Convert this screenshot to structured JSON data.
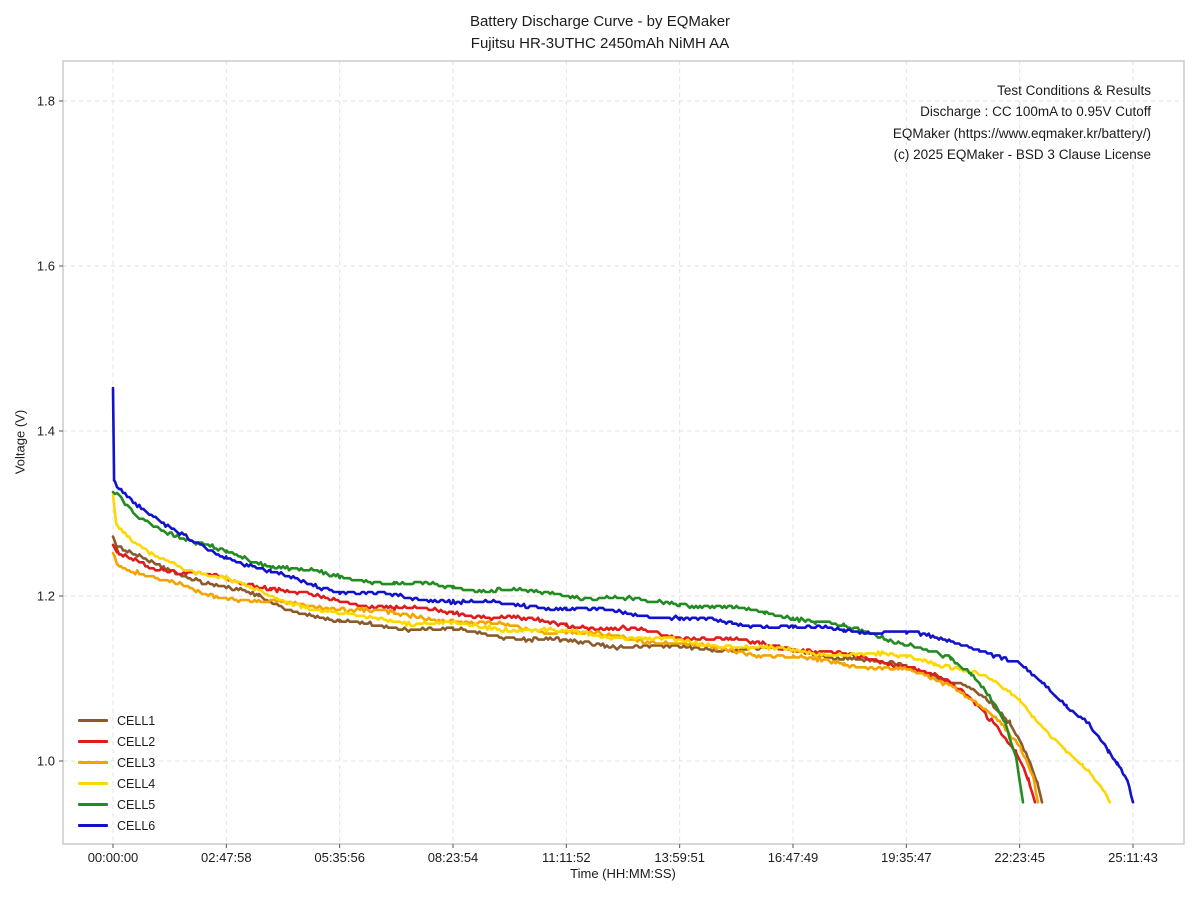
{
  "figure": {
    "title_line1": "Battery Discharge Curve - by EQMaker",
    "title_line2": "Fujitsu HR-3UTHC 2450mAh NiMH AA",
    "annotation": {
      "lines": [
        "Test Conditions & Results",
        "Discharge : CC 100mA to 0.95V Cutoff",
        "EQMaker (https://www.eqmaker.kr/battery/)",
        "(c) 2025 EQMaker - BSD 3 Clause License"
      ]
    }
  },
  "chart_data": {
    "type": "line",
    "title": "Battery Discharge Curve - by EQMaker\nFujitsu HR-3UTHC 2450mAh NiMH AA",
    "xlabel": "Time (HH:MM:SS)",
    "ylabel": "Voltage (V)",
    "x_tick_labels": [
      "00:00:00",
      "02:47:58",
      "05:35:56",
      "08:23:54",
      "11:11:52",
      "13:59:51",
      "16:47:49",
      "19:35:47",
      "22:23:45",
      "25:11:43"
    ],
    "x_ticks_seconds": [
      0,
      10078,
      20156,
      30234,
      40312,
      50391,
      60469,
      70547,
      80625,
      90703
    ],
    "y_tick_labels": [
      "1.0",
      "1.2",
      "1.4",
      "1.6",
      "1.8"
    ],
    "y_ticks": [
      1.0,
      1.2,
      1.4,
      1.6,
      1.8
    ],
    "xlim_seconds": [
      -4450,
      95600
    ],
    "ylim": [
      0.898,
      1.85
    ],
    "grid": true,
    "grid_style": "dashed",
    "legend_position": "lower-left",
    "series": [
      {
        "name": "CELL1",
        "color": "#8B5A2B",
        "points": [
          [
            0,
            1.272
          ],
          [
            400,
            1.258
          ],
          [
            1800,
            1.25
          ],
          [
            3600,
            1.238
          ],
          [
            7200,
            1.222
          ],
          [
            10078,
            1.21
          ],
          [
            13000,
            1.198
          ],
          [
            16000,
            1.183
          ],
          [
            20156,
            1.168
          ],
          [
            25000,
            1.163
          ],
          [
            30234,
            1.158
          ],
          [
            36000,
            1.15
          ],
          [
            40312,
            1.144
          ],
          [
            45000,
            1.14
          ],
          [
            50391,
            1.137
          ],
          [
            56000,
            1.136
          ],
          [
            60469,
            1.135
          ],
          [
            65000,
            1.125
          ],
          [
            70547,
            1.114
          ],
          [
            73000,
            1.105
          ],
          [
            75600,
            1.092
          ],
          [
            77800,
            1.072
          ],
          [
            79800,
            1.045
          ],
          [
            81300,
            1.008
          ],
          [
            82200,
            0.975
          ],
          [
            82607,
            0.95
          ]
        ]
      },
      {
        "name": "CELL2",
        "color": "#E01B1B",
        "points": [
          [
            0,
            1.262
          ],
          [
            400,
            1.252
          ],
          [
            1800,
            1.245
          ],
          [
            3600,
            1.235
          ],
          [
            7200,
            1.226
          ],
          [
            10078,
            1.22
          ],
          [
            14000,
            1.21
          ],
          [
            20156,
            1.193
          ],
          [
            25000,
            1.186
          ],
          [
            30234,
            1.18
          ],
          [
            36000,
            1.172
          ],
          [
            40312,
            1.165
          ],
          [
            45000,
            1.16
          ],
          [
            50391,
            1.152
          ],
          [
            55000,
            1.146
          ],
          [
            60469,
            1.137
          ],
          [
            65000,
            1.128
          ],
          [
            70547,
            1.116
          ],
          [
            72500,
            1.107
          ],
          [
            74500,
            1.093
          ],
          [
            76500,
            1.072
          ],
          [
            78500,
            1.045
          ],
          [
            80300,
            1.012
          ],
          [
            81400,
            0.978
          ],
          [
            81984,
            0.95
          ]
        ]
      },
      {
        "name": "CELL3",
        "color": "#F5A300",
        "points": [
          [
            0,
            1.252
          ],
          [
            400,
            1.24
          ],
          [
            1800,
            1.232
          ],
          [
            3600,
            1.221
          ],
          [
            7200,
            1.207
          ],
          [
            10078,
            1.198
          ],
          [
            14000,
            1.192
          ],
          [
            20156,
            1.186
          ],
          [
            25000,
            1.178
          ],
          [
            30234,
            1.17
          ],
          [
            36000,
            1.162
          ],
          [
            40312,
            1.156
          ],
          [
            45000,
            1.15
          ],
          [
            50391,
            1.142
          ],
          [
            55000,
            1.134
          ],
          [
            60469,
            1.125
          ],
          [
            65000,
            1.118
          ],
          [
            70547,
            1.11
          ],
          [
            72500,
            1.101
          ],
          [
            74800,
            1.09
          ],
          [
            76800,
            1.072
          ],
          [
            78800,
            1.048
          ],
          [
            80700,
            1.014
          ],
          [
            81800,
            0.98
          ],
          [
            82251,
            0.95
          ]
        ]
      },
      {
        "name": "CELL4",
        "color": "#FFD700",
        "points": [
          [
            0,
            1.323
          ],
          [
            300,
            1.285
          ],
          [
            1800,
            1.263
          ],
          [
            3600,
            1.248
          ],
          [
            7200,
            1.231
          ],
          [
            10078,
            1.22
          ],
          [
            14000,
            1.2
          ],
          [
            18000,
            1.185
          ],
          [
            20156,
            1.178
          ],
          [
            25000,
            1.17
          ],
          [
            30234,
            1.165
          ],
          [
            36000,
            1.16
          ],
          [
            40312,
            1.156
          ],
          [
            45000,
            1.151
          ],
          [
            50391,
            1.145
          ],
          [
            55000,
            1.14
          ],
          [
            60469,
            1.133
          ],
          [
            65000,
            1.13
          ],
          [
            70547,
            1.127
          ],
          [
            73000,
            1.12
          ],
          [
            75500,
            1.111
          ],
          [
            78000,
            1.098
          ],
          [
            80625,
            1.074
          ],
          [
            82500,
            1.046
          ],
          [
            84500,
            1.016
          ],
          [
            86250,
            0.992
          ],
          [
            87800,
            0.968
          ],
          [
            88653,
            0.95
          ]
        ]
      },
      {
        "name": "CELL5",
        "color": "#228B22",
        "points": [
          [
            0,
            1.326
          ],
          [
            1800,
            1.302
          ],
          [
            3600,
            1.287
          ],
          [
            7200,
            1.264
          ],
          [
            10078,
            1.253
          ],
          [
            14000,
            1.238
          ],
          [
            20156,
            1.223
          ],
          [
            25000,
            1.216
          ],
          [
            30234,
            1.211
          ],
          [
            36000,
            1.206
          ],
          [
            40312,
            1.201
          ],
          [
            45000,
            1.196
          ],
          [
            50391,
            1.191
          ],
          [
            55000,
            1.185
          ],
          [
            58000,
            1.18
          ],
          [
            60469,
            1.175
          ],
          [
            62500,
            1.169
          ],
          [
            65000,
            1.162
          ],
          [
            67500,
            1.154
          ],
          [
            70547,
            1.143
          ],
          [
            72500,
            1.134
          ],
          [
            74500,
            1.122
          ],
          [
            76300,
            1.104
          ],
          [
            78000,
            1.08
          ],
          [
            79400,
            1.048
          ],
          [
            80300,
            1.005
          ],
          [
            80917,
            0.95
          ]
        ]
      },
      {
        "name": "CELL6",
        "color": "#1212CC",
        "points": [
          [
            0,
            1.452
          ],
          [
            100,
            1.34
          ],
          [
            1800,
            1.315
          ],
          [
            3600,
            1.295
          ],
          [
            5400,
            1.278
          ],
          [
            7200,
            1.265
          ],
          [
            10078,
            1.248
          ],
          [
            14000,
            1.228
          ],
          [
            20156,
            1.206
          ],
          [
            25000,
            1.2
          ],
          [
            30234,
            1.194
          ],
          [
            36000,
            1.189
          ],
          [
            40312,
            1.185
          ],
          [
            45000,
            1.18
          ],
          [
            50391,
            1.173
          ],
          [
            55000,
            1.168
          ],
          [
            60469,
            1.162
          ],
          [
            65000,
            1.159
          ],
          [
            70547,
            1.155
          ],
          [
            74000,
            1.147
          ],
          [
            77000,
            1.136
          ],
          [
            80625,
            1.116
          ],
          [
            82500,
            1.096
          ],
          [
            84800,
            1.068
          ],
          [
            86800,
            1.046
          ],
          [
            88500,
            1.012
          ],
          [
            89300,
            0.996
          ],
          [
            90200,
            0.974
          ],
          [
            90703,
            0.95
          ]
        ]
      }
    ]
  }
}
